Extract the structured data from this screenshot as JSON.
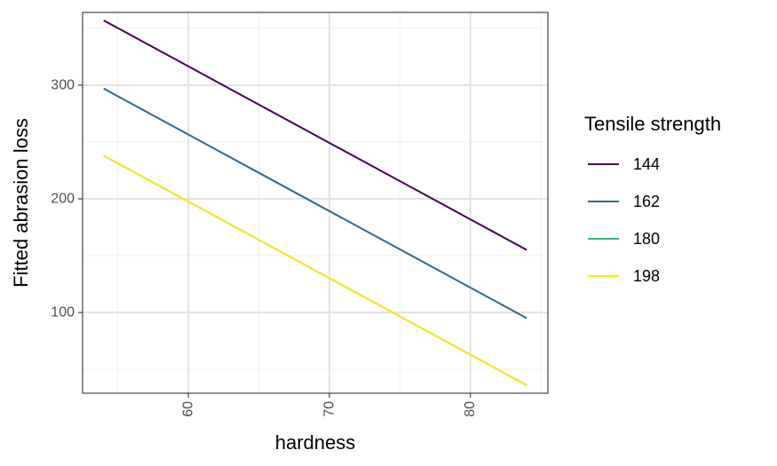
{
  "chart_data": {
    "type": "line",
    "xlabel": "hardness",
    "ylabel": "Fitted abrasion loss",
    "xlim": [
      52.5,
      85.5
    ],
    "ylim": [
      29,
      364
    ],
    "x_ticks": [
      60,
      70,
      80
    ],
    "x_minor_ticks": [
      55,
      65,
      75,
      85
    ],
    "y_ticks": [
      100,
      200,
      300
    ],
    "y_minor_ticks": [
      50,
      150,
      250,
      350
    ],
    "grid": true,
    "legend": {
      "title": "Tensile strength",
      "position": "right"
    },
    "series": [
      {
        "name": "144",
        "color": "#440154",
        "x": [
          54,
          84
        ],
        "y": [
          357,
          155
        ]
      },
      {
        "name": "162",
        "color": "#31688E",
        "x": [
          54,
          84
        ],
        "y": [
          297,
          95
        ]
      },
      {
        "name": "180",
        "color": "#35B779",
        "x": [
          54,
          84
        ],
        "y": [
          238,
          36
        ]
      },
      {
        "name": "198",
        "color": "#FDE725",
        "x": [
          54,
          84
        ],
        "y": [
          238,
          36
        ]
      }
    ]
  }
}
